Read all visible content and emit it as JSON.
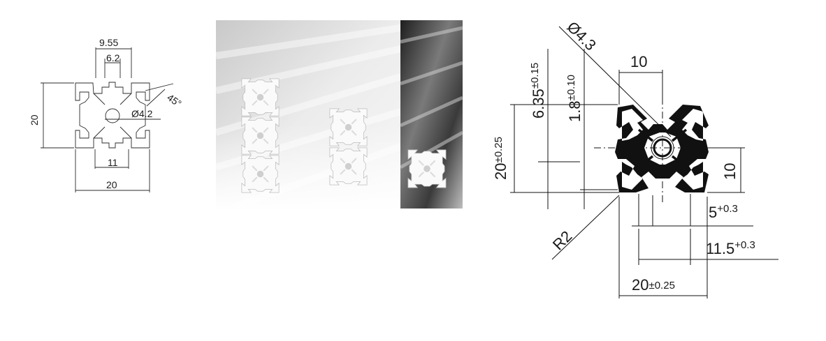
{
  "left_drawing": {
    "dim_top_width": "9.55",
    "dim_slot_width": "6.2",
    "dim_angle": "45°",
    "dim_bore": "Ø4.2",
    "dim_height": "20",
    "dim_bottom_slot": "11",
    "dim_width": "20"
  },
  "right_drawing": {
    "dim_bore": "Ø4.3",
    "dim_slot_top": "10",
    "dim_depth": "6.35",
    "dim_depth_tol": "±0.15",
    "dim_wall": "1.8",
    "dim_wall_tol": "±0.10",
    "dim_height": "20",
    "dim_height_tol": "±0.25",
    "dim_side_slot": "10",
    "dim_opening": "5",
    "dim_opening_tol": "+0.3",
    "dim_radius": "R2",
    "dim_inner": "11.5",
    "dim_inner_tol": "+0.3",
    "dim_width": "20",
    "dim_width_tol": "±0.25"
  },
  "colors": {
    "line": "#1a1a1a",
    "photo_light": "#e6e6e6",
    "photo_dark": "#3a3a3a",
    "profile_white": "#fafafa"
  }
}
